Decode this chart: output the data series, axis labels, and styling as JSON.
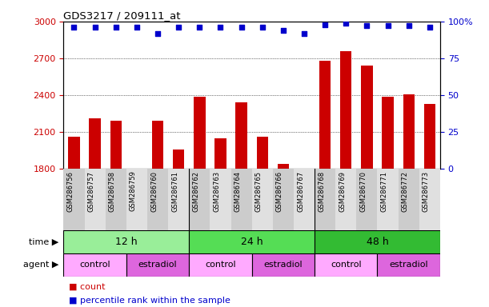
{
  "title": "GDS3217 / 209111_at",
  "samples": [
    "GSM286756",
    "GSM286757",
    "GSM286758",
    "GSM286759",
    "GSM286760",
    "GSM286761",
    "GSM286762",
    "GSM286763",
    "GSM286764",
    "GSM286765",
    "GSM286766",
    "GSM286767",
    "GSM286768",
    "GSM286769",
    "GSM286770",
    "GSM286771",
    "GSM286772",
    "GSM286773"
  ],
  "counts": [
    2060,
    2210,
    2190,
    1790,
    2190,
    1960,
    2390,
    2050,
    2340,
    2060,
    1840,
    1800,
    2680,
    2760,
    2640,
    2390,
    2410,
    2330
  ],
  "percentile_ranks": [
    96,
    96,
    96,
    96,
    92,
    96,
    96,
    96,
    96,
    96,
    94,
    92,
    98,
    99,
    97,
    97,
    97,
    96
  ],
  "ylim_left": [
    1800,
    3000
  ],
  "ylim_right": [
    0,
    100
  ],
  "yticks_left": [
    1800,
    2100,
    2400,
    2700,
    3000
  ],
  "yticks_right": [
    0,
    25,
    50,
    75,
    100
  ],
  "bar_color": "#cc0000",
  "dot_color": "#0000cc",
  "time_groups": [
    {
      "label": "12 h",
      "start": 0,
      "end": 6,
      "color": "#99ee99"
    },
    {
      "label": "24 h",
      "start": 6,
      "end": 12,
      "color": "#55dd55"
    },
    {
      "label": "48 h",
      "start": 12,
      "end": 18,
      "color": "#33bb33"
    }
  ],
  "agent_groups": [
    {
      "label": "control",
      "start": 0,
      "end": 3,
      "color": "#ffaaff"
    },
    {
      "label": "estradiol",
      "start": 3,
      "end": 6,
      "color": "#dd66dd"
    },
    {
      "label": "control",
      "start": 6,
      "end": 9,
      "color": "#ffaaff"
    },
    {
      "label": "estradiol",
      "start": 9,
      "end": 12,
      "color": "#dd66dd"
    },
    {
      "label": "control",
      "start": 12,
      "end": 15,
      "color": "#ffaaff"
    },
    {
      "label": "estradiol",
      "start": 15,
      "end": 18,
      "color": "#dd66dd"
    }
  ],
  "legend_count_color": "#cc0000",
  "legend_dot_color": "#0000cc",
  "bg_color": "#ffffff",
  "grid_color": "#000000",
  "tick_label_color_left": "#cc0000",
  "tick_label_color_right": "#0000cc",
  "xtick_bg_color": "#dddddd"
}
